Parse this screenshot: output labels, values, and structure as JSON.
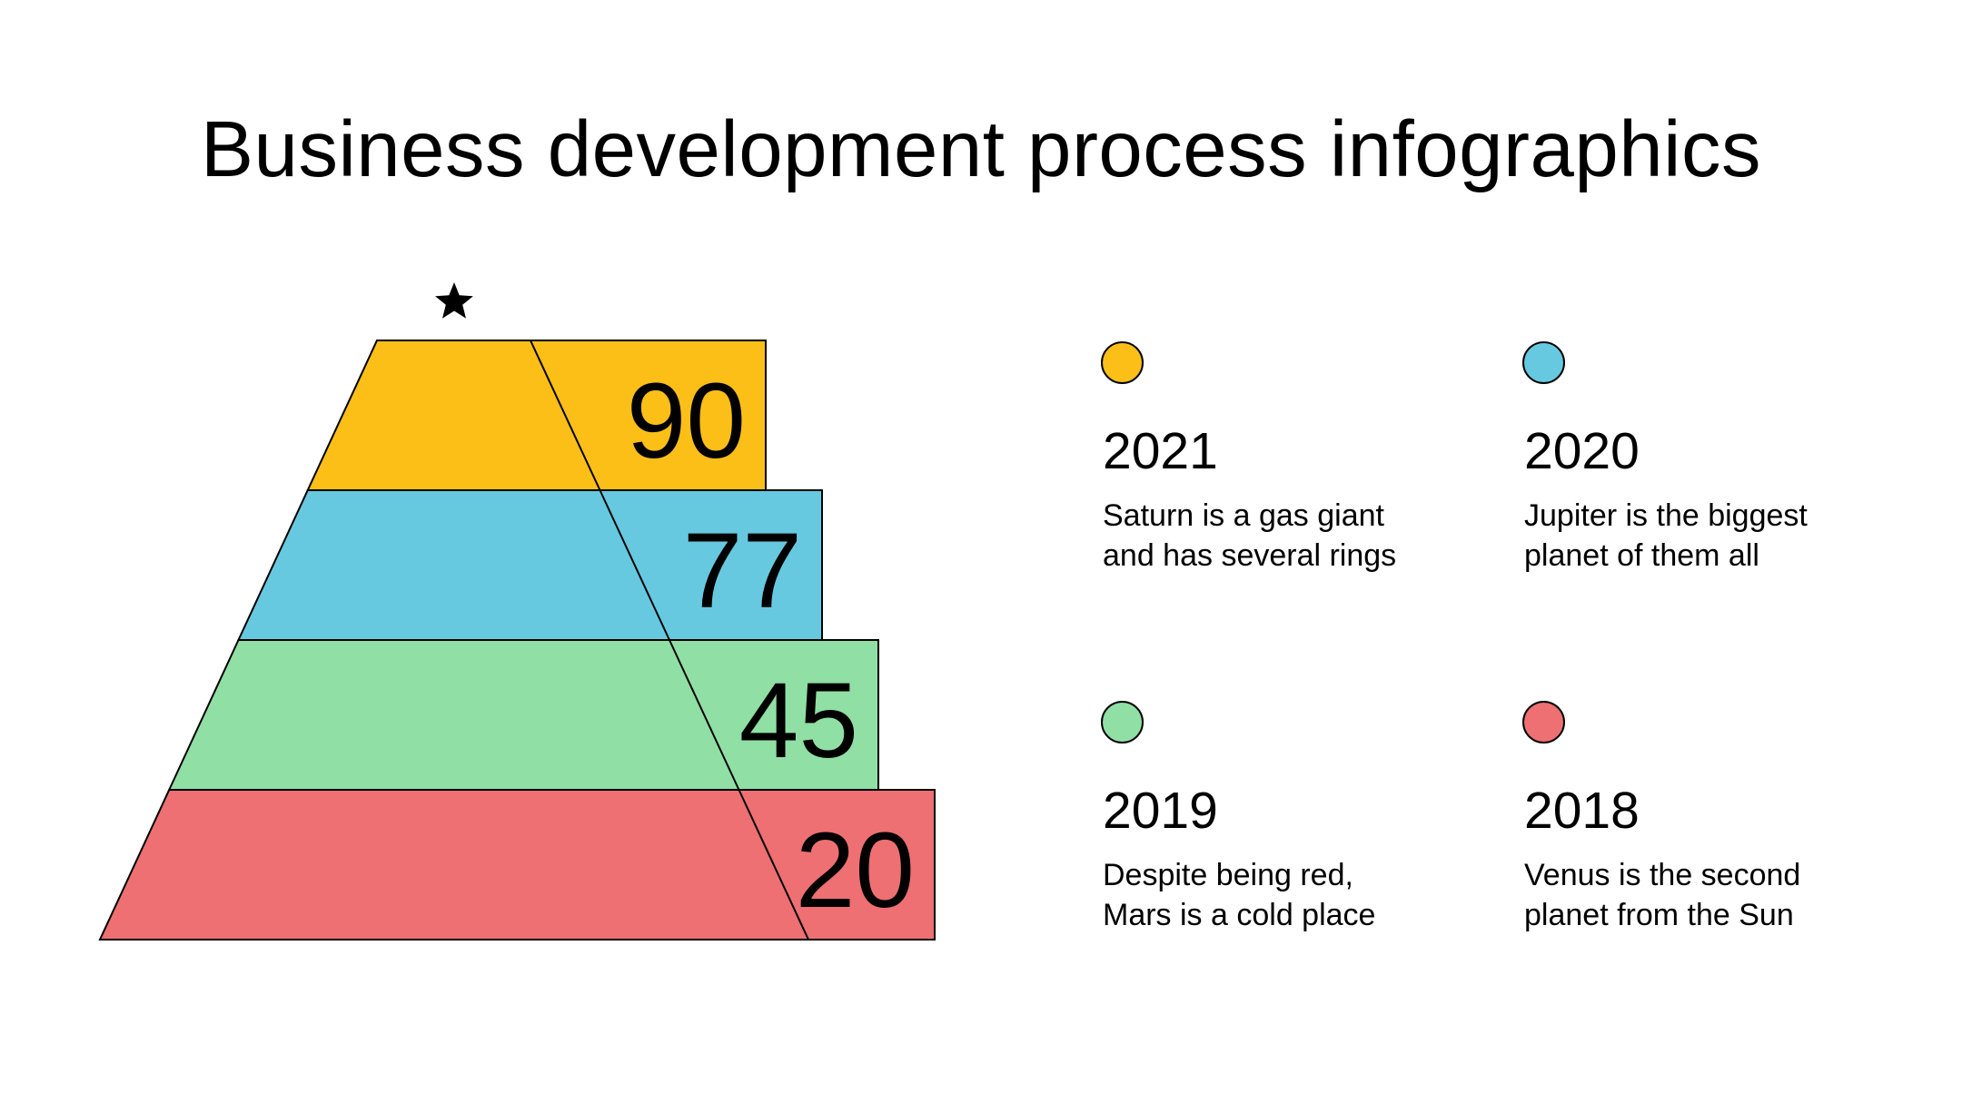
{
  "title": "Business development process infographics",
  "pyramid": {
    "levels": [
      {
        "value": "90",
        "color": "#FBBF18"
      },
      {
        "value": "77",
        "color": "#67C9E0"
      },
      {
        "value": "45",
        "color": "#90DFA5"
      },
      {
        "value": "20",
        "color": "#EE7072"
      }
    ],
    "top_icon": "star-icon"
  },
  "legend": [
    {
      "year": "2021",
      "desc_line1": "Saturn is a gas giant",
      "desc_line2": "and has several rings",
      "color": "#FBBF18"
    },
    {
      "year": "2020",
      "desc_line1": "Jupiter is the biggest",
      "desc_line2": "planet of them all",
      "color": "#67C9E0"
    },
    {
      "year": "2019",
      "desc_line1": "Despite being red,",
      "desc_line2": "Mars is a cold place",
      "color": "#90DFA5"
    },
    {
      "year": "2018",
      "desc_line1": "Venus is the second",
      "desc_line2": "planet from the Sun",
      "color": "#EE7072"
    }
  ]
}
